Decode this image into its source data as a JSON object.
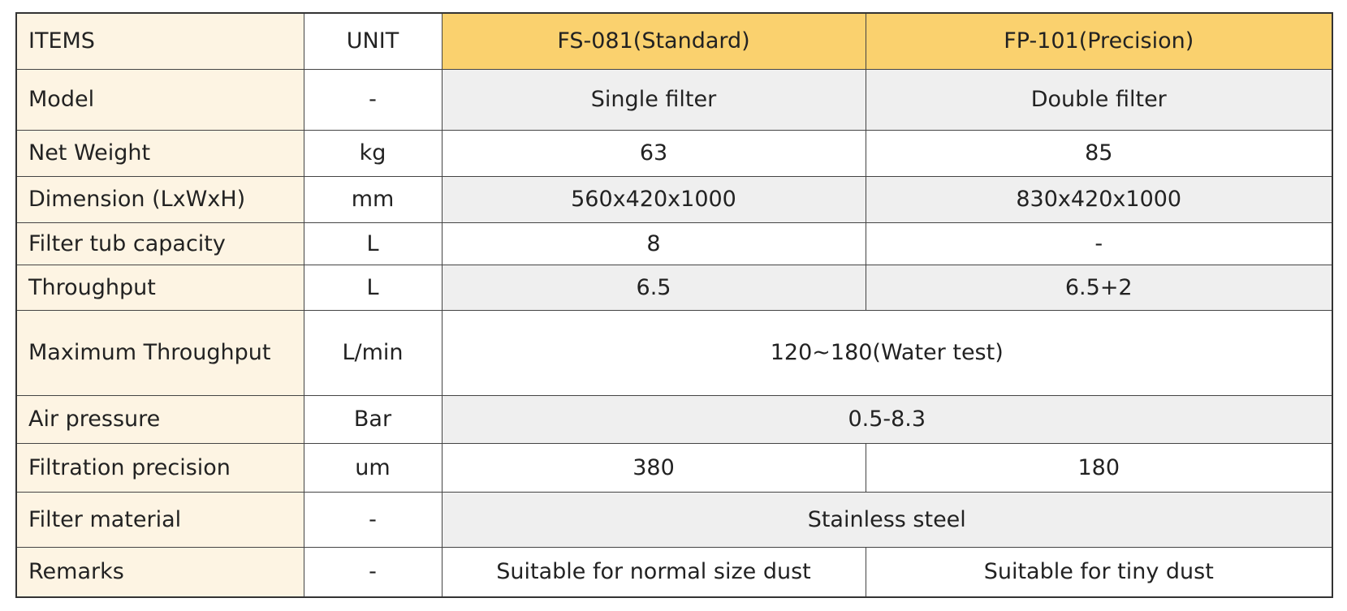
{
  "table": {
    "header": [
      "ITEMS",
      "UNIT",
      "FS-081(Standard)",
      "FP-101(Precision)"
    ],
    "rows": [
      [
        "Model",
        "-",
        "Single filter",
        "Double filter"
      ],
      [
        "Net Weight",
        "kg",
        "63",
        "85"
      ],
      [
        "Dimension (LxWxH)",
        "mm",
        "560x420x1000",
        "830x420x1000"
      ],
      [
        "Filter tub capacity",
        "L",
        "8",
        "-"
      ],
      [
        "Throughput",
        "L",
        "6.5",
        "6.5+2"
      ],
      [
        "Maximum Throughput",
        "L/min",
        "120~180(Water test)"
      ],
      [
        "Air pressure",
        "Bar",
        "0.5-8.3"
      ],
      [
        "Filtration precision",
        "um",
        "380",
        "180"
      ],
      [
        "Filter material",
        "-",
        "Stainless steel"
      ],
      [
        "Remarks",
        "-",
        "Suitable for normal size dust",
        "Suitable for tiny dust"
      ]
    ]
  }
}
